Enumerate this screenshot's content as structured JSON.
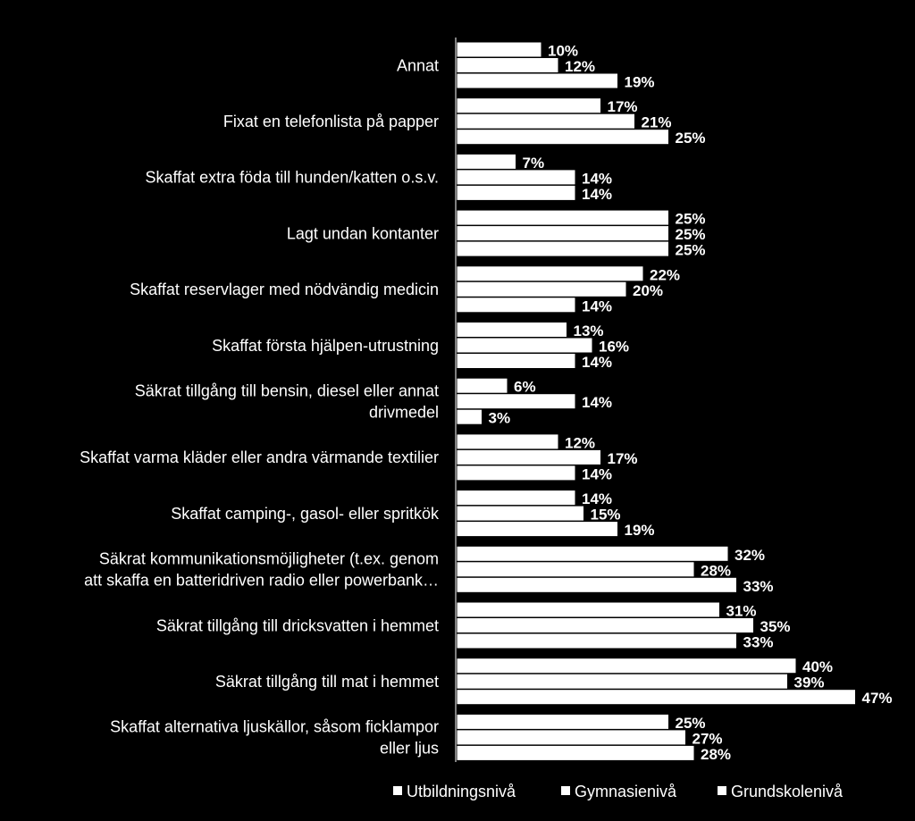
{
  "chart_data": {
    "type": "bar",
    "orientation": "horizontal",
    "categories": [
      [
        "Annat"
      ],
      [
        "Fixat en telefonlista på papper"
      ],
      [
        "Skaffat extra föda till hunden/katten o.s.v."
      ],
      [
        "Lagt undan kontanter"
      ],
      [
        "Skaffat reservlager med nödvändig medicin"
      ],
      [
        "Skaffat första hjälpen-utrustning"
      ],
      [
        "Säkrat tillgång till bensin, diesel eller annat",
        "drivmedel"
      ],
      [
        "Skaffat varma kläder eller andra värmande textilier"
      ],
      [
        "Skaffat camping-, gasol- eller spritkök"
      ],
      [
        "Säkrat kommunikationsmöjligheter (t.ex. genom",
        "att skaffa en batteridriven radio eller powerbank…"
      ],
      [
        "Säkrat tillgång till dricksvatten i hemmet"
      ],
      [
        "Säkrat tillgång till mat i hemmet"
      ],
      [
        "Skaffat alternativa ljuskällor, såsom ficklampor",
        "eller ljus"
      ]
    ],
    "series": [
      {
        "name": "Utbildningsnivå",
        "values": [
          10,
          17,
          7,
          25,
          22,
          13,
          6,
          12,
          14,
          32,
          31,
          40,
          25
        ]
      },
      {
        "name": "Gymnasienivå",
        "values": [
          12,
          21,
          14,
          25,
          20,
          16,
          14,
          17,
          15,
          28,
          35,
          39,
          27
        ]
      },
      {
        "name": "Grundskolenivå",
        "values": [
          19,
          25,
          14,
          25,
          14,
          14,
          3,
          14,
          19,
          33,
          33,
          47,
          28
        ]
      }
    ],
    "value_suffix": "%",
    "xlim": [
      0,
      50
    ],
    "legend_position": "bottom",
    "grid": false,
    "colors": {
      "background": "#000000",
      "bar_fill": "#ffffff",
      "text": "#ffffff"
    }
  },
  "legend": {
    "items": [
      "Utbildningsnivå",
      "Gymnasienivå",
      "Grundskolenivå"
    ]
  }
}
